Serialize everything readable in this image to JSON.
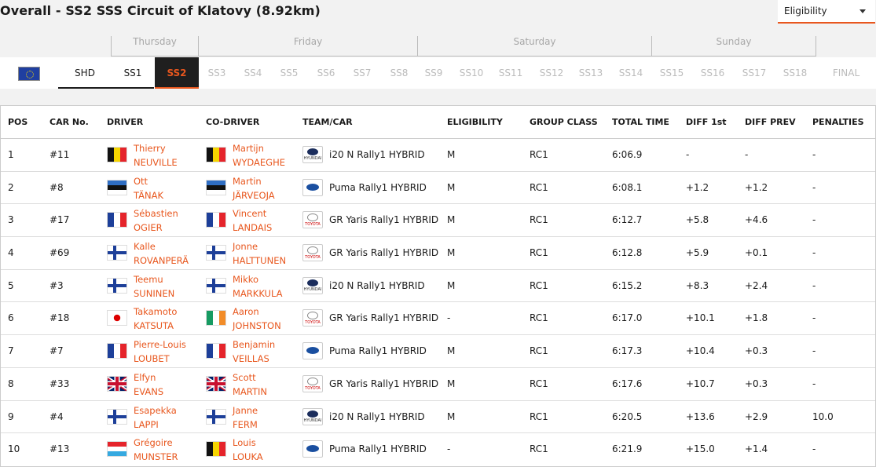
{
  "header": {
    "title": "Overall - SS2 SSS Circuit of Klatovy (8.92km)",
    "eligibility_select": "Eligibility"
  },
  "days": [
    "Thursday",
    "Friday",
    "Saturday",
    "Sunday"
  ],
  "stages": [
    "SHD",
    "SS1",
    "SS2",
    "SS3",
    "SS4",
    "SS5",
    "SS6",
    "SS7",
    "SS8",
    "SS9",
    "SS10",
    "SS11",
    "SS12",
    "SS13",
    "SS14",
    "SS15",
    "SS16",
    "SS17",
    "SS18",
    "FINAL"
  ],
  "selected_stage": "SS2",
  "columns": {
    "pos": "POS",
    "car": "CAR No.",
    "driver": "DRIVER",
    "codriver": "CO-DRIVER",
    "team": "TEAM/CAR",
    "eligibility": "ELIGIBILITY",
    "group": "GROUP CLASS",
    "total": "TOTAL TIME",
    "diff1": "DIFF 1st",
    "diffprev": "DIFF PREV",
    "penalties": "PENALTIES"
  },
  "colors": {
    "accent": "#e8571e",
    "dark": "#1f1f1f"
  },
  "rows": [
    {
      "pos": "1",
      "car": "#11",
      "driver_first": "Thierry",
      "driver_last": "NEUVILLE",
      "driver_flag": "belgium-flag",
      "codriver_first": "Martijn",
      "codriver_last": "WYDAEGHE",
      "codriver_flag": "belgium-flag",
      "brand": "hyundai",
      "brand_text": "HYUNDAI",
      "team": "i20 N Rally1 HYBRID",
      "eligibility": "M",
      "group": "RC1",
      "total": "6:06.9",
      "diff1": "-",
      "diffprev": "-",
      "penalties": "-"
    },
    {
      "pos": "2",
      "car": "#8",
      "driver_first": "Ott",
      "driver_last": "TÄNAK",
      "driver_flag": "estonia-flag",
      "codriver_first": "Martin",
      "codriver_last": "JÄRVEOJA",
      "codriver_flag": "estonia-flag",
      "brand": "ford",
      "brand_text": "",
      "team": "Puma Rally1 HYBRID",
      "eligibility": "M",
      "group": "RC1",
      "total": "6:08.1",
      "diff1": "+1.2",
      "diffprev": "+1.2",
      "penalties": "-"
    },
    {
      "pos": "3",
      "car": "#17",
      "driver_first": "Sébastien",
      "driver_last": "OGIER",
      "driver_flag": "france-flag",
      "codriver_first": "Vincent",
      "codriver_last": "LANDAIS",
      "codriver_flag": "france-flag",
      "brand": "toyota",
      "brand_text": "TOYOTA",
      "team": "GR Yaris Rally1 HYBRID",
      "eligibility": "M",
      "group": "RC1",
      "total": "6:12.7",
      "diff1": "+5.8",
      "diffprev": "+4.6",
      "penalties": "-"
    },
    {
      "pos": "4",
      "car": "#69",
      "driver_first": "Kalle",
      "driver_last": "ROVANPERÄ",
      "driver_flag": "finland-flag",
      "codriver_first": "Jonne",
      "codriver_last": "HALTTUNEN",
      "codriver_flag": "finland-flag",
      "brand": "toyota",
      "brand_text": "TOYOTA",
      "team": "GR Yaris Rally1 HYBRID",
      "eligibility": "M",
      "group": "RC1",
      "total": "6:12.8",
      "diff1": "+5.9",
      "diffprev": "+0.1",
      "penalties": "-"
    },
    {
      "pos": "5",
      "car": "#3",
      "driver_first": "Teemu",
      "driver_last": "SUNINEN",
      "driver_flag": "finland-flag",
      "codriver_first": "Mikko",
      "codriver_last": "MARKKULA",
      "codriver_flag": "finland-flag",
      "brand": "hyundai",
      "brand_text": "HYUNDAI",
      "team": "i20 N Rally1 HYBRID",
      "eligibility": "M",
      "group": "RC1",
      "total": "6:15.2",
      "diff1": "+8.3",
      "diffprev": "+2.4",
      "penalties": "-"
    },
    {
      "pos": "6",
      "car": "#18",
      "driver_first": "Takamoto",
      "driver_last": "KATSUTA",
      "driver_flag": "japan-flag",
      "codriver_first": "Aaron",
      "codriver_last": "JOHNSTON",
      "codriver_flag": "ireland-flag",
      "brand": "toyota",
      "brand_text": "TOYOTA",
      "team": "GR Yaris Rally1 HYBRID",
      "eligibility": "-",
      "group": "RC1",
      "total": "6:17.0",
      "diff1": "+10.1",
      "diffprev": "+1.8",
      "penalties": "-"
    },
    {
      "pos": "7",
      "car": "#7",
      "driver_first": "Pierre-Louis",
      "driver_last": "LOUBET",
      "driver_flag": "france-flag",
      "codriver_first": "Benjamin",
      "codriver_last": "VEILLAS",
      "codriver_flag": "france-flag",
      "brand": "ford",
      "brand_text": "",
      "team": "Puma Rally1 HYBRID",
      "eligibility": "M",
      "group": "RC1",
      "total": "6:17.3",
      "diff1": "+10.4",
      "diffprev": "+0.3",
      "penalties": "-"
    },
    {
      "pos": "8",
      "car": "#33",
      "driver_first": "Elfyn",
      "driver_last": "EVANS",
      "driver_flag": "uk-flag",
      "codriver_first": "Scott",
      "codriver_last": "MARTIN",
      "codriver_flag": "uk-flag",
      "brand": "toyota",
      "brand_text": "TOYOTA",
      "team": "GR Yaris Rally1 HYBRID",
      "eligibility": "M",
      "group": "RC1",
      "total": "6:17.6",
      "diff1": "+10.7",
      "diffprev": "+0.3",
      "penalties": "-"
    },
    {
      "pos": "9",
      "car": "#4",
      "driver_first": "Esapekka",
      "driver_last": "LAPPI",
      "driver_flag": "finland-flag",
      "codriver_first": "Janne",
      "codriver_last": "FERM",
      "codriver_flag": "finland-flag",
      "brand": "hyundai",
      "brand_text": "HYUNDAI",
      "team": "i20 N Rally1 HYBRID",
      "eligibility": "M",
      "group": "RC1",
      "total": "6:20.5",
      "diff1": "+13.6",
      "diffprev": "+2.9",
      "penalties": "10.0"
    },
    {
      "pos": "10",
      "car": "#13",
      "driver_first": "Grégoire",
      "driver_last": "MUNSTER",
      "driver_flag": "luxembourg-flag",
      "codriver_first": "Louis",
      "codriver_last": "LOUKA",
      "codriver_flag": "belgium-flag",
      "brand": "ford",
      "brand_text": "",
      "team": "Puma Rally1 HYBRID",
      "eligibility": "-",
      "group": "RC1",
      "total": "6:21.9",
      "diff1": "+15.0",
      "diffprev": "+1.4",
      "penalties": "-"
    }
  ]
}
